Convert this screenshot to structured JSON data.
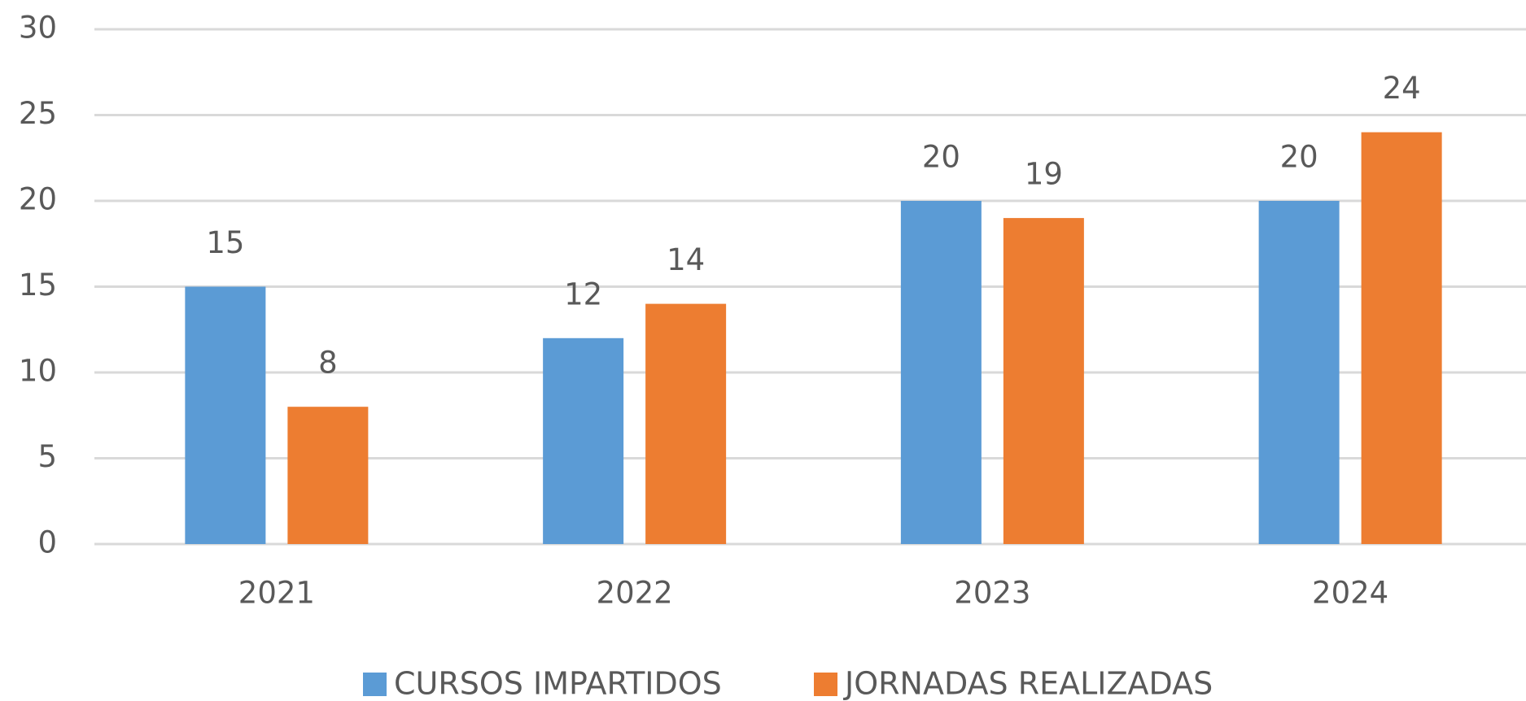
{
  "chart_data": {
    "type": "bar",
    "categories": [
      "2021",
      "2022",
      "2023",
      "2024"
    ],
    "series": [
      {
        "name": "CURSOS IMPARTIDOS",
        "color": "#5b9bd5",
        "values": [
          15,
          12,
          20,
          20
        ]
      },
      {
        "name": "JORNADAS REALIZADAS",
        "color": "#ed7d31",
        "values": [
          8,
          14,
          19,
          24
        ]
      }
    ],
    "ylim": [
      0,
      30
    ],
    "yticks": [
      0,
      5,
      10,
      15,
      20,
      25,
      30
    ],
    "grid": true,
    "legend": "bottom"
  }
}
